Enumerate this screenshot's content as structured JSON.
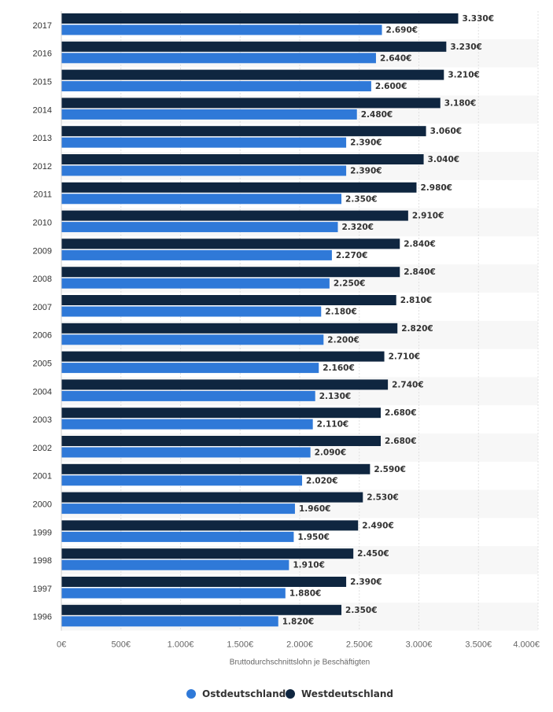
{
  "colors": {
    "ost": "#2f79d8",
    "west": "#0f2640",
    "band": "#f7f7f7",
    "grid": "#e0e0e0",
    "axis": "#cccccc"
  },
  "chart_data": {
    "type": "bar",
    "orientation": "horizontal",
    "title": "",
    "xlabel": "Bruttodurchschnittslohn je Beschäftigten",
    "ylabel": "",
    "xlim": [
      0,
      4000
    ],
    "grid": true,
    "legend_position": "bottom",
    "value_suffix": "€",
    "x_ticks": [
      "0€",
      "500€",
      "1.000€",
      "1.500€",
      "2.000€",
      "2.500€",
      "3.000€",
      "3.500€",
      "4.000€"
    ],
    "x_tick_values": [
      0,
      500,
      1000,
      1500,
      2000,
      2500,
      3000,
      3500,
      4000
    ],
    "categories": [
      "2017",
      "2016",
      "2015",
      "2014",
      "2013",
      "2012",
      "2011",
      "2010",
      "2009",
      "2008",
      "2007",
      "2006",
      "2005",
      "2004",
      "2003",
      "2002",
      "2001",
      "2000",
      "1999",
      "1998",
      "1997",
      "1996"
    ],
    "series": [
      {
        "name": "Westdeutschland",
        "values": [
          3330,
          3230,
          3210,
          3180,
          3060,
          3040,
          2980,
          2910,
          2840,
          2840,
          2810,
          2820,
          2710,
          2740,
          2680,
          2680,
          2590,
          2530,
          2490,
          2450,
          2390,
          2350
        ],
        "labels": [
          "3.330€",
          "3.230€",
          "3.210€",
          "3.180€",
          "3.060€",
          "3.040€",
          "2.980€",
          "2.910€",
          "2.840€",
          "2.840€",
          "2.810€",
          "2.820€",
          "2.710€",
          "2.740€",
          "2.680€",
          "2.680€",
          "2.590€",
          "2.530€",
          "2.490€",
          "2.450€",
          "2.390€",
          "2.350€"
        ]
      },
      {
        "name": "Ostdeutschland",
        "values": [
          2690,
          2640,
          2600,
          2480,
          2390,
          2390,
          2350,
          2320,
          2270,
          2250,
          2180,
          2200,
          2160,
          2130,
          2110,
          2090,
          2020,
          1960,
          1950,
          1910,
          1880,
          1820
        ],
        "labels": [
          "2.690€",
          "2.640€",
          "2.600€",
          "2.480€",
          "2.390€",
          "2.390€",
          "2.350€",
          "2.320€",
          "2.270€",
          "2.250€",
          "2.180€",
          "2.200€",
          "2.160€",
          "2.130€",
          "2.110€",
          "2.090€",
          "2.020€",
          "1.960€",
          "1.950€",
          "1.910€",
          "1.880€",
          "1.820€"
        ]
      }
    ]
  },
  "legend": {
    "ost_label": "Ostdeutschland",
    "west_label": "Westdeutschland"
  }
}
